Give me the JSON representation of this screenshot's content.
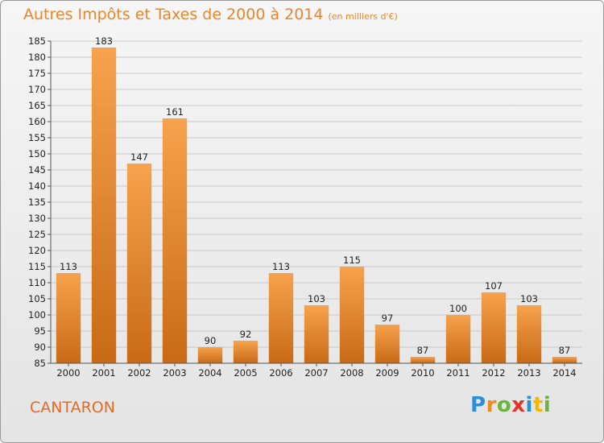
{
  "header": {
    "title": "Autres Impôts et Taxes de 2000 à 2014",
    "subtitle": "(en milliers d'€)"
  },
  "commune": "CANTARON",
  "logo": {
    "text": "Proxiti",
    "letters": [
      {
        "ch": "P",
        "color": "#2d8fd8"
      },
      {
        "ch": "r",
        "color": "#f08c1e"
      },
      {
        "ch": "o",
        "color": "#6cb33f"
      },
      {
        "ch": "x",
        "color": "#e6332a"
      },
      {
        "ch": "i",
        "color": "#2d8fd8"
      },
      {
        "ch": "t",
        "color": "#f5b800"
      },
      {
        "ch": "i",
        "color": "#6cb33f"
      }
    ]
  },
  "colors": {
    "bar_top": "#f7a24e",
    "bar_bottom": "#c86a16",
    "title": "#e8862d",
    "commune": "#e66a1f"
  },
  "chart_data": {
    "type": "bar",
    "title": "Autres Impôts et Taxes de 2000 à 2014",
    "subtitle": "(en milliers d'€)",
    "categories": [
      "2000",
      "2001",
      "2002",
      "2003",
      "2004",
      "2005",
      "2006",
      "2007",
      "2008",
      "2009",
      "2010",
      "2011",
      "2012",
      "2013",
      "2014"
    ],
    "values": [
      113,
      183,
      147,
      161,
      90,
      92,
      113,
      103,
      115,
      97,
      87,
      100,
      107,
      103,
      87
    ],
    "ylim": [
      85,
      185
    ],
    "yticks": [
      85,
      90,
      95,
      100,
      105,
      110,
      115,
      120,
      125,
      130,
      135,
      140,
      145,
      150,
      155,
      160,
      165,
      170,
      175,
      180,
      185
    ],
    "grid": true,
    "legend": "none"
  }
}
